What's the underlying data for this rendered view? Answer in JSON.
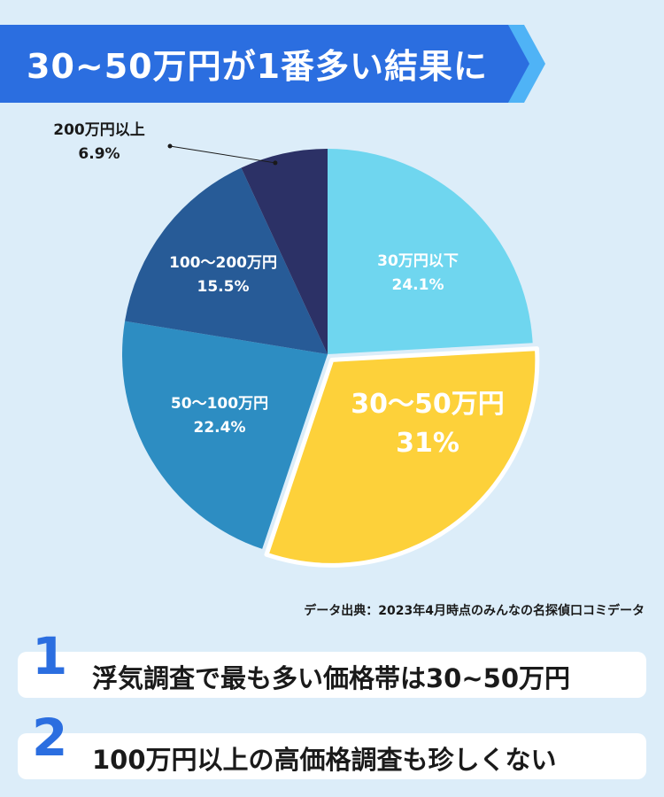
{
  "header": {
    "title": "30~50万円が1番多い結果に"
  },
  "chart_data": {
    "type": "pie",
    "unit": "%",
    "slices": [
      {
        "label": "30万円以下",
        "value": 24.1,
        "display": "24.1%",
        "color": "#6fd6ef",
        "text_color": "#ffffff",
        "highlight": false
      },
      {
        "label": "30〜50万円",
        "value": 31,
        "display": "31%",
        "color": "#fdd13a",
        "text_color": "#ffffff",
        "highlight": true
      },
      {
        "label": "50〜100万円",
        "value": 22.4,
        "display": "22.4%",
        "color": "#2d8dc2",
        "text_color": "#ffffff",
        "highlight": false
      },
      {
        "label": "100〜200万円",
        "value": 15.5,
        "display": "15.5%",
        "color": "#275b97",
        "text_color": "#ffffff",
        "highlight": false
      },
      {
        "label": "200万円以上",
        "value": 6.9,
        "display": "6.9%",
        "color": "#2c3166",
        "text_color": "#1a1a1a",
        "highlight": false
      }
    ]
  },
  "source": "データ出典：2023年4月時点のみんなの名探偵口コミデータ",
  "findings": [
    {
      "number": "1",
      "text": "浮気調査で最も多い価格帯は30~50万円"
    },
    {
      "number": "2",
      "text": "100万円以上の高価格調査も珍しくない"
    }
  ],
  "colors": {
    "banner": "#2b6ee0",
    "banner_accent": "#4fb3f6",
    "background": "#dcedf9",
    "number": "#2b6ee0"
  }
}
